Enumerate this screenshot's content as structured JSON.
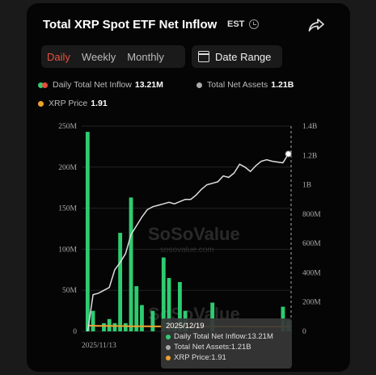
{
  "header": {
    "title": "Total XRP Spot ETF Net Inflow",
    "timezone": "EST",
    "clock_icon": "clock-icon",
    "share_icon": "share-icon"
  },
  "tabs": [
    {
      "label": "Daily",
      "active": true
    },
    {
      "label": "Weekly",
      "active": false
    },
    {
      "label": "Monthly",
      "active": false
    }
  ],
  "date_range": {
    "label": "Date Range",
    "icon": "calendar-icon"
  },
  "legend": {
    "daily_inflow": {
      "label": "Daily Total Net Inflow",
      "value": "13.21M"
    },
    "total_assets": {
      "label": "Total Net Assets",
      "value": "1.21B"
    },
    "xrp_price": {
      "label": "XRP Price",
      "value": "1.91"
    }
  },
  "colors": {
    "inflow": "#2ecc71",
    "outflow": "#e74c3c",
    "assets": "#dddddd",
    "price": "#f0a030",
    "accent": "#e8533f"
  },
  "watermark": {
    "brand": "SoSoValue",
    "url": "sosovalue.com"
  },
  "tooltip": {
    "date": "2025/12/19",
    "rows": [
      {
        "label": "Daily Total Net Inflow: ",
        "value": "13.21M",
        "color": "#2ecc71"
      },
      {
        "label": "Total Net Assets: ",
        "value": "1.21B",
        "color": "#aaaaaa"
      },
      {
        "label": "XRP Price: ",
        "value": "1.91",
        "color": "#f0a030"
      }
    ]
  },
  "chart_data": {
    "type": "bar",
    "x_tick_labels": [
      "2025/11/13"
    ],
    "y_left": {
      "ticks": [
        "250M",
        "200M",
        "150M",
        "100M",
        "50M",
        "0"
      ],
      "min": 0,
      "max": 250
    },
    "y_right": {
      "ticks": [
        "1.4B",
        "1.2B",
        "1B",
        "800M",
        "600M",
        "400M",
        "200M",
        "0"
      ],
      "min": 0,
      "max": 1400
    },
    "series": [
      {
        "name": "Daily Total Net Inflow",
        "unit": "M",
        "values": [
          243,
          25,
          0,
          10,
          15,
          10,
          120,
          10,
          163,
          55,
          32,
          0,
          25,
          0,
          90,
          65,
          8,
          60,
          25,
          0,
          0,
          0,
          0,
          35,
          0,
          0,
          0,
          0,
          0,
          0,
          0,
          0,
          0,
          0,
          0,
          0,
          30,
          13.21
        ]
      },
      {
        "name": "Total Net Assets",
        "unit": "M",
        "values": [
          0,
          250,
          260,
          280,
          300,
          420,
          470,
          530,
          660,
          720,
          780,
          830,
          850,
          860,
          870,
          880,
          870,
          885,
          900,
          900,
          930,
          970,
          1000,
          1010,
          1020,
          1060,
          1050,
          1080,
          1140,
          1120,
          1090,
          1130,
          1160,
          1170,
          1160,
          1155,
          1150,
          1210
        ]
      },
      {
        "name": "XRP Price",
        "values": [
          2.4,
          2.35,
          2.3,
          2.3,
          2.25,
          2.2,
          2.2,
          2.15,
          2.1,
          2.1,
          2.05,
          2.05,
          2.0,
          2.0,
          2.0,
          2.0,
          2.0,
          1.95,
          1.95,
          1.95,
          1.95,
          1.95,
          1.95,
          1.95,
          1.95,
          1.95,
          1.95,
          1.95,
          1.95,
          1.95,
          1.92,
          1.92,
          1.92,
          1.92,
          1.91,
          1.91,
          1.91,
          1.91
        ]
      }
    ]
  }
}
